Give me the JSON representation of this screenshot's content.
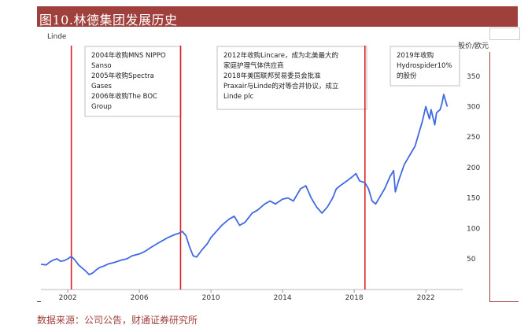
{
  "header": {
    "title": "图10.林德集团发展历史"
  },
  "source": "数据来源：公司公告，财通证券研究所",
  "colors": {
    "header_bg": "#a0403d",
    "line": "#4169e1",
    "event_line": "#e02020",
    "source_text": "#a0403d"
  },
  "chart_data": {
    "type": "line",
    "title": "Linde",
    "ylabel": "股价/欧元",
    "xlim": [
      2000.5,
      2023.5
    ],
    "ylim": [
      20,
      385
    ],
    "x_ticks": [
      2002,
      2006,
      2010,
      2014,
      2018,
      2022
    ],
    "y_ticks": [
      50,
      100,
      150,
      200,
      250,
      300,
      350
    ],
    "grid": false,
    "series": [
      {
        "points": [
          [
            2000.5,
            41
          ],
          [
            2000.8,
            40
          ],
          [
            2001.0,
            45
          ],
          [
            2001.2,
            48
          ],
          [
            2001.4,
            50
          ],
          [
            2001.6,
            46
          ],
          [
            2001.8,
            47
          ],
          [
            2002.0,
            50
          ],
          [
            2002.2,
            54
          ],
          [
            2002.4,
            48
          ],
          [
            2002.6,
            40
          ],
          [
            2002.8,
            35
          ],
          [
            2003.0,
            30
          ],
          [
            2003.2,
            24
          ],
          [
            2003.4,
            27
          ],
          [
            2003.6,
            32
          ],
          [
            2003.8,
            36
          ],
          [
            2004.0,
            38
          ],
          [
            2004.3,
            42
          ],
          [
            2004.6,
            44
          ],
          [
            2005.0,
            48
          ],
          [
            2005.3,
            50
          ],
          [
            2005.6,
            55
          ],
          [
            2006.0,
            58
          ],
          [
            2006.3,
            62
          ],
          [
            2006.6,
            68
          ],
          [
            2007.0,
            75
          ],
          [
            2007.3,
            80
          ],
          [
            2007.6,
            85
          ],
          [
            2008.0,
            90
          ],
          [
            2008.2,
            92
          ],
          [
            2008.4,
            95
          ],
          [
            2008.6,
            88
          ],
          [
            2008.8,
            70
          ],
          [
            2009.0,
            55
          ],
          [
            2009.2,
            53
          ],
          [
            2009.5,
            65
          ],
          [
            2009.8,
            75
          ],
          [
            2010.0,
            85
          ],
          [
            2010.3,
            95
          ],
          [
            2010.6,
            105
          ],
          [
            2011.0,
            115
          ],
          [
            2011.3,
            120
          ],
          [
            2011.6,
            105
          ],
          [
            2011.9,
            110
          ],
          [
            2012.3,
            125
          ],
          [
            2012.6,
            130
          ],
          [
            2013.0,
            140
          ],
          [
            2013.3,
            145
          ],
          [
            2013.6,
            140
          ],
          [
            2014.0,
            148
          ],
          [
            2014.3,
            150
          ],
          [
            2014.6,
            145
          ],
          [
            2015.0,
            165
          ],
          [
            2015.3,
            170
          ],
          [
            2015.6,
            150
          ],
          [
            2015.9,
            135
          ],
          [
            2016.2,
            125
          ],
          [
            2016.5,
            135
          ],
          [
            2016.8,
            150
          ],
          [
            2017.0,
            165
          ],
          [
            2017.3,
            172
          ],
          [
            2017.6,
            178
          ],
          [
            2017.9,
            185
          ],
          [
            2018.1,
            190
          ],
          [
            2018.3,
            178
          ],
          [
            2018.6,
            175
          ],
          [
            2018.8,
            165
          ],
          [
            2019.0,
            145
          ],
          [
            2019.2,
            140
          ],
          [
            2019.4,
            150
          ],
          [
            2019.7,
            165
          ],
          [
            2020.0,
            185
          ],
          [
            2020.2,
            195
          ],
          [
            2020.3,
            160
          ],
          [
            2020.5,
            180
          ],
          [
            2020.8,
            205
          ],
          [
            2021.0,
            215
          ],
          [
            2021.2,
            225
          ],
          [
            2021.4,
            235
          ],
          [
            2021.6,
            255
          ],
          [
            2021.8,
            275
          ],
          [
            2022.0,
            300
          ],
          [
            2022.2,
            280
          ],
          [
            2022.3,
            295
          ],
          [
            2022.5,
            270
          ],
          [
            2022.6,
            290
          ],
          [
            2022.8,
            295
          ],
          [
            2022.9,
            305
          ],
          [
            2023.0,
            320
          ],
          [
            2023.1,
            310
          ],
          [
            2023.2,
            300
          ]
        ]
      }
    ],
    "events": [
      {
        "x": 2002.2,
        "label": "2004年收购MNS NIPPO Sanso\n2005年收购Spectra Gases\n2006年收购The BOC Group"
      },
      {
        "x": 2008.3,
        "label": "2012年收购Lincare，成为北美最大的家庭护理气体供应商\n2018年美国联邦贸易委员会批准Praxair与Linde的对等合并协议，成立Linde plc"
      },
      {
        "x": 2018.6,
        "label": "2019年收购Hydrospider10%的股份"
      }
    ],
    "annotations": [
      {
        "lines": [
          "2004年收购MNS NIPPO",
          "Sanso",
          "2005年收购Spectra",
          "Gases",
          "2006年收购The BOC",
          "Group"
        ]
      },
      {
        "lines": [
          "2012年收购Lincare，成为北美最大的",
          "家庭护理气体供应商",
          "2018年美国联邦贸易委员会批准",
          "Praxair与Linde的对等合并协议，成立",
          "Linde plc"
        ]
      },
      {
        "lines": [
          "2019年收购",
          "Hydrospider10%",
          "的股份"
        ]
      }
    ]
  }
}
